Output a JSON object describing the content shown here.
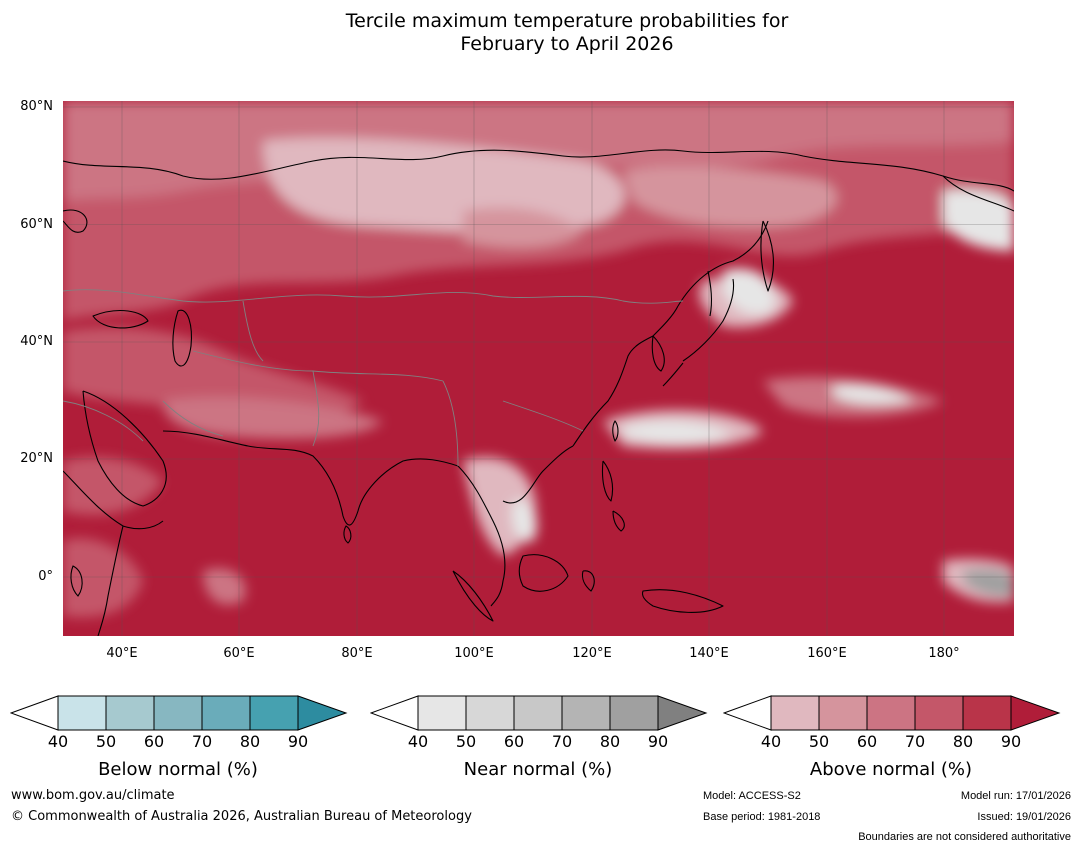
{
  "title": {
    "line1": "Tercile maximum temperature probabilities for",
    "line2": "February to April 2026"
  },
  "map": {
    "lat_labels": [
      "80°N",
      "60°N",
      "40°N",
      "20°N",
      "0°"
    ],
    "lon_labels": [
      "40°E",
      "60°E",
      "80°E",
      "100°E",
      "120°E",
      "140°E",
      "160°E",
      "180°"
    ],
    "extent": {
      "lon_min": 30,
      "lon_max": 192,
      "lat_min": -10,
      "lat_max": 81
    }
  },
  "legend": {
    "ticks": [
      "40",
      "50",
      "60",
      "70",
      "80",
      "90"
    ],
    "below": {
      "label": "Below normal (%)",
      "colors": [
        "#c9e3e9",
        "#a6c9cf",
        "#87b7c1",
        "#6aacba",
        "#46a1b0",
        "#2d8ca0"
      ]
    },
    "near": {
      "label": "Near normal (%)",
      "colors": [
        "#e6e6e6",
        "#d7d7d7",
        "#c8c8c8",
        "#b4b4b4",
        "#a0a0a0",
        "#808080"
      ]
    },
    "above": {
      "label": "Above normal (%)",
      "colors": [
        "#e0b8bf",
        "#d5949d",
        "#cc7483",
        "#c45769",
        "#b93449",
        "#b01d39"
      ]
    }
  },
  "footer": {
    "website": "www.bom.gov.au/climate",
    "copyright": "© Commonwealth of Australia 2026, Australian Bureau of Meteorology",
    "model": "Model: ACCESS-S2",
    "base_period": "Base period: 1981-2018",
    "model_run": "Model run: 17/01/2026",
    "issued": "Issued: 19/01/2026",
    "disclaimer": "Boundaries are not considered authoritative"
  }
}
